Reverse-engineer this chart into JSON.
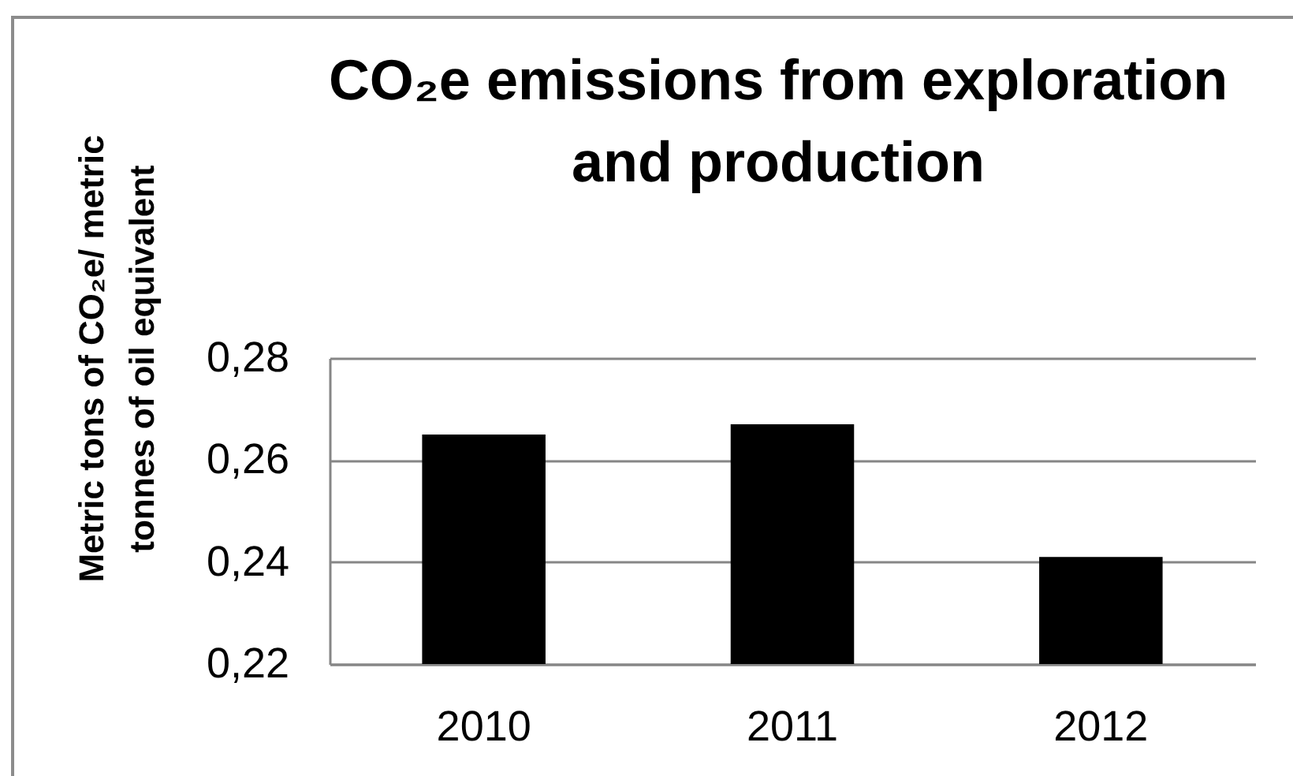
{
  "chart_data": {
    "type": "bar",
    "title": "CO₂e emissions from exploration and production",
    "ylabel": "Metric tons of CO₂e/ metric tonnes of oil equivalent",
    "categories": [
      "2010",
      "2011",
      "2012"
    ],
    "values": [
      0.265,
      0.267,
      0.241
    ],
    "color": "#000000",
    "ylim": [
      0.22,
      0.28
    ],
    "yticks": [
      {
        "value": 0.22,
        "label": "0,22"
      },
      {
        "value": 0.24,
        "label": "0,24"
      },
      {
        "value": 0.26,
        "label": "0,26"
      },
      {
        "value": 0.28,
        "label": "0,28"
      }
    ],
    "grid": "y"
  }
}
